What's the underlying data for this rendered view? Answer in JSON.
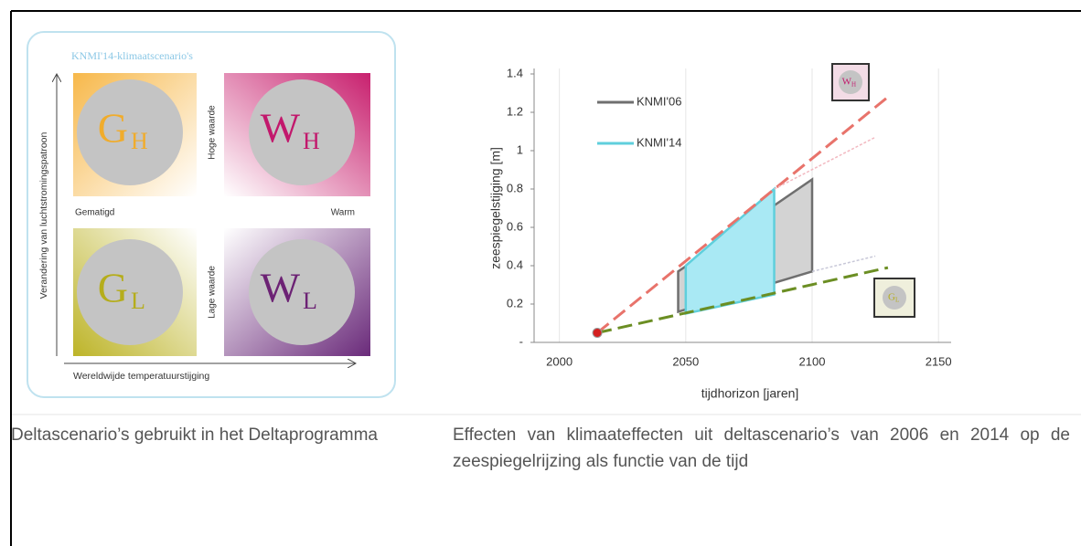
{
  "left_figure": {
    "title": "KNMI'14-klimaatscenario's",
    "y_axis_label": "Verandering van luchtstromingspatroon",
    "x_axis_label": "Wereldwijde temperatuurstijging",
    "top_label": "Hoge waarde",
    "bottom_label": "Lage waarde",
    "left_label": "Gematigd",
    "right_label": "Warm",
    "quadrants": [
      {
        "letter": "G",
        "subscript": "H"
      },
      {
        "letter": "W",
        "subscript": "H"
      },
      {
        "letter": "G",
        "subscript": "L"
      },
      {
        "letter": "W",
        "subscript": "L"
      }
    ]
  },
  "chart_data": {
    "type": "line",
    "xlabel": "tijdhorizon [jaren]",
    "ylabel": "zeespiegelstijging  [m]",
    "xlim": [
      1990,
      2155
    ],
    "xticks": [
      2000,
      2050,
      2100,
      2150
    ],
    "ylim": [
      0,
      1.4
    ],
    "yticks": [
      {
        "value": 0,
        "label": "-"
      },
      0.2,
      0.4,
      0.6,
      0.8,
      1.0,
      1.2,
      1.4
    ],
    "bands": [
      {
        "name": "KNMI'06",
        "color": "#6f6f6f",
        "fill": "#d3d3d3",
        "x": [
          2047,
          2100
        ],
        "high": [
          0.37,
          0.85
        ],
        "low": [
          0.16,
          0.37
        ]
      },
      {
        "name": "KNMI'14",
        "color": "#5fcfdc",
        "fill": "#a9e9f4",
        "x": [
          2050,
          2085
        ],
        "high": [
          0.4,
          0.8
        ],
        "low": [
          0.15,
          0.25
        ]
      }
    ],
    "lines": [
      {
        "color": "#e8736b",
        "dashed": true,
        "x": [
          2015,
          2130
        ],
        "values": [
          0.05,
          1.28
        ]
      },
      {
        "color": "#6b8e23",
        "dashed": true,
        "x": [
          2015,
          2130
        ],
        "values": [
          0.05,
          0.39
        ]
      },
      {
        "color": "#f2b8c0",
        "dashed": false,
        "x": [
          2085,
          2125
        ],
        "values": [
          0.8,
          1.07
        ]
      },
      {
        "color": "#c8c8d8",
        "dashed": false,
        "x": [
          2100,
          2125
        ],
        "values": [
          0.37,
          0.45
        ]
      }
    ],
    "icons": [
      {
        "letter": "W",
        "subscript": "H"
      },
      {
        "letter": "G",
        "subscript": "L"
      }
    ]
  },
  "captions": [
    "Deltascenario’s gebruikt in het Deltaprogramma",
    "Effecten van klimaateffecten uit deltascenario’s van 2006 en 2014 op de zeespiegelrijzing als functie van de tijd"
  ]
}
